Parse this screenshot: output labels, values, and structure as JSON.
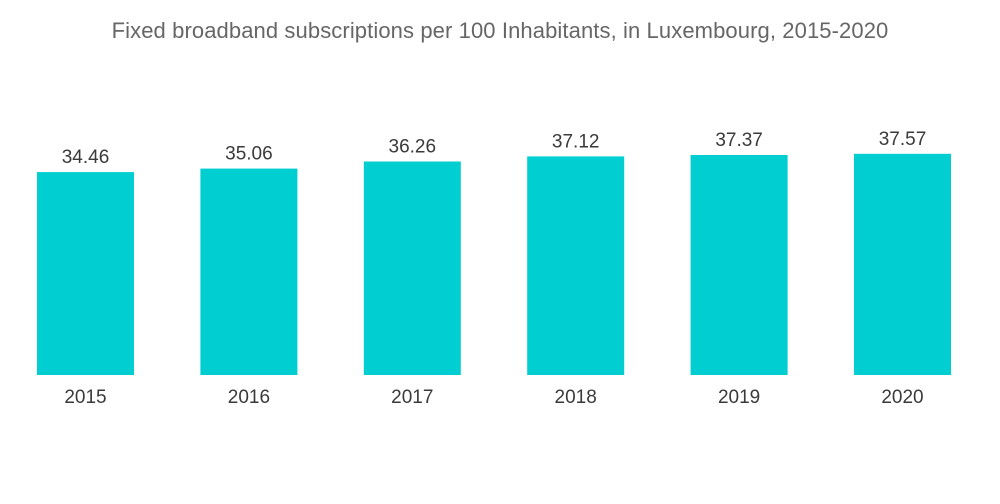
{
  "chart_data": {
    "type": "bar",
    "title": "Fixed broadband subscriptions per 100 Inhabitants, in Luxembourg, 2015-2020",
    "categories": [
      "2015",
      "2016",
      "2017",
      "2018",
      "2019",
      "2020"
    ],
    "values": [
      34.46,
      35.06,
      36.26,
      37.12,
      37.37,
      37.57
    ],
    "value_labels": [
      "34.46",
      "35.06",
      "36.26",
      "37.12",
      "37.37",
      "37.57"
    ],
    "xlabel": "",
    "ylabel": "",
    "ylim": [
      0,
      45.5
    ],
    "grid": false,
    "legend": "none",
    "bar_color": "#00CED1"
  }
}
